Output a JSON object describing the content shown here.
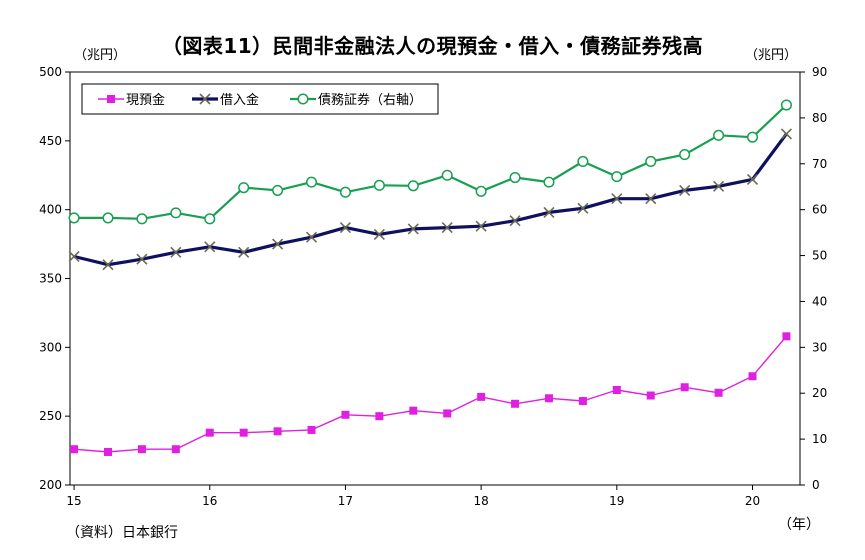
{
  "chart_data": {
    "type": "line",
    "title": "（図表11）民間非金融法人の現預金・借入・債務証券残高",
    "left_unit": "（兆円）",
    "right_unit": "（兆円）",
    "x_unit": "（年）",
    "source": "（資料）日本銀行",
    "x": [
      2015.0,
      2015.25,
      2015.5,
      2015.75,
      2016.0,
      2016.25,
      2016.5,
      2016.75,
      2017.0,
      2017.25,
      2017.5,
      2017.75,
      2018.0,
      2018.25,
      2018.5,
      2018.75,
      2019.0,
      2019.25,
      2019.5,
      2019.75,
      2020.0,
      2020.25
    ],
    "x_ticks": [
      "15",
      "16",
      "17",
      "18",
      "19",
      "20"
    ],
    "x_tick_values": [
      2015,
      2016,
      2017,
      2018,
      2019,
      2020
    ],
    "xlim": [
      2014.97,
      2020.35
    ],
    "y_left_lim": [
      200,
      500
    ],
    "y_left_ticks": [
      "200",
      "250",
      "300",
      "350",
      "400",
      "450",
      "500"
    ],
    "y_right_lim": [
      0,
      90
    ],
    "y_right_ticks": [
      "0",
      "10",
      "20",
      "30",
      "40",
      "50",
      "60",
      "70",
      "80",
      "90"
    ],
    "legend_position": "top-left",
    "grid": false,
    "series": [
      {
        "name": "現預金",
        "axis": "left",
        "color": "#e020e0",
        "marker": "square",
        "values": [
          226,
          224,
          226,
          226,
          238,
          238,
          239,
          240,
          251,
          250,
          254,
          252,
          264,
          259,
          263,
          261,
          269,
          265,
          271,
          267,
          279,
          308
        ]
      },
      {
        "name": "借入金",
        "axis": "left",
        "color": "#101060",
        "marker": "x",
        "values": [
          366,
          360,
          364,
          369,
          373,
          369,
          375,
          380,
          387,
          382,
          386,
          387,
          388,
          392,
          398,
          401,
          408,
          408,
          414,
          417,
          422,
          455
        ]
      },
      {
        "name": "債務証券（右軸）",
        "axis": "right",
        "color": "#18a050",
        "marker": "circle",
        "values": [
          58.2,
          58.2,
          58.0,
          59.3,
          58.0,
          64.8,
          64.2,
          66.0,
          63.8,
          65.3,
          65.2,
          67.5,
          64.0,
          67.0,
          66.0,
          70.5,
          67.2,
          70.5,
          72.0,
          76.2,
          75.8,
          82.8
        ]
      }
    ]
  }
}
